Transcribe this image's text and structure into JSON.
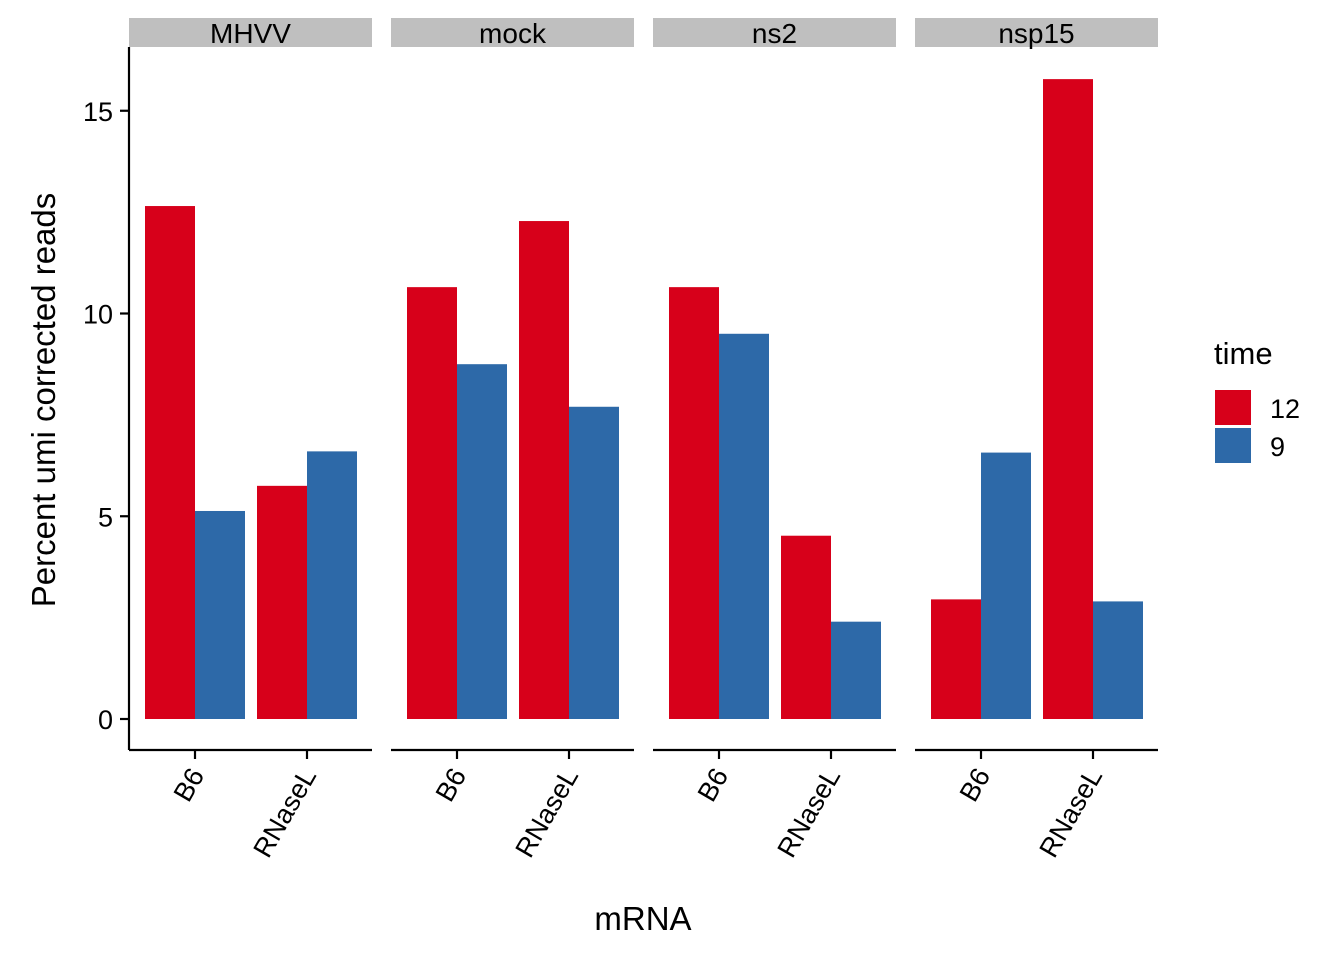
{
  "chart_data": {
    "type": "bar",
    "facet_variable": "virus",
    "panels": [
      "MHVV",
      "mock",
      "ns2",
      "nsp15"
    ],
    "categories": [
      "B6",
      "RNaseL"
    ],
    "series": [
      {
        "name": "12",
        "color": "#d7001a",
        "values": {
          "MHVV": [
            12.65,
            5.75
          ],
          "mock": [
            10.65,
            12.28
          ],
          "ns2": [
            10.65,
            4.52
          ],
          "nsp15": [
            2.95,
            15.78
          ]
        }
      },
      {
        "name": "9",
        "color": "#2d69a8",
        "values": {
          "MHVV": [
            5.13,
            6.6
          ],
          "mock": [
            8.75,
            7.7
          ],
          "ns2": [
            9.5,
            2.4
          ],
          "nsp15": [
            6.57,
            2.9
          ]
        }
      }
    ],
    "xlabel": "mRNA",
    "ylabel": "Percent umi corrected reads",
    "yticks": [
      "0",
      "5",
      "10",
      "15"
    ],
    "ylim": [
      0,
      16.5
    ],
    "legend": {
      "title": "time",
      "position": "right"
    },
    "grid": false
  }
}
